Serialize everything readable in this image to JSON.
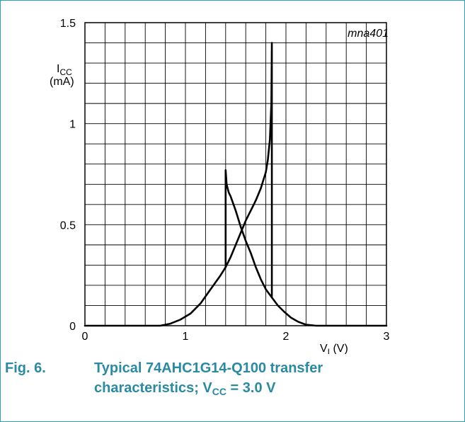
{
  "caption": {
    "number": "Fig. 6.",
    "line1": "Typical 74AHC1G14-Q100 transfer",
    "line2_prefix": "characteristics; V",
    "line2_sub": "CC",
    "line2_suffix": " = 3.0 V"
  },
  "chart_data": {
    "type": "line",
    "code": "mna401",
    "ylabel_main": "I",
    "ylabel_sub": "CC",
    "ylabel_unit": "(mA)",
    "xlabel_main": "V",
    "xlabel_sub": "I",
    "xlabel_unit": " (V)",
    "xlim": [
      0,
      3
    ],
    "ylim": [
      0,
      1.5
    ],
    "xticks": [
      "0",
      "1",
      "2",
      "3"
    ],
    "yticks": [
      "0",
      "0.5",
      "1",
      "1.5"
    ],
    "grid": true,
    "series": [
      {
        "x": [
          0,
          0.75,
          0.85,
          0.95,
          1.05,
          1.15,
          1.25,
          1.35,
          1.4,
          1.45,
          1.5,
          1.55,
          1.6,
          1.65,
          1.7,
          1.75,
          1.8,
          1.82,
          1.84,
          1.855,
          1.86,
          1.86
        ],
        "y": [
          0,
          0,
          0.01,
          0.03,
          0.06,
          0.11,
          0.18,
          0.25,
          0.29,
          0.34,
          0.4,
          0.46,
          0.52,
          0.57,
          0.62,
          0.68,
          0.76,
          0.82,
          0.92,
          1.1,
          1.4,
          0.14
        ]
      },
      {
        "x": [
          1.4,
          1.4,
          1.41,
          1.43,
          1.45,
          1.5,
          1.55,
          1.6,
          1.65,
          1.7,
          1.75,
          1.8,
          1.86,
          1.92,
          1.98,
          2.05,
          2.12,
          2.2,
          2.3,
          2.4,
          3.0
        ],
        "y": [
          0.29,
          0.77,
          0.7,
          0.66,
          0.64,
          0.57,
          0.49,
          0.42,
          0.36,
          0.29,
          0.23,
          0.18,
          0.14,
          0.1,
          0.07,
          0.04,
          0.02,
          0.005,
          0,
          0,
          0
        ]
      }
    ]
  }
}
